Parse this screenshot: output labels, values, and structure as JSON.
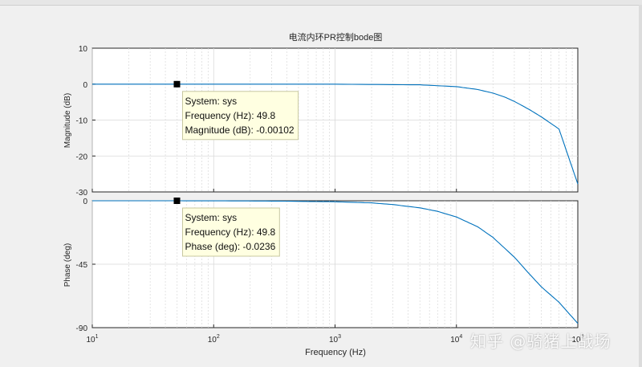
{
  "colors": {
    "background": "#f0f0f0",
    "axes_face": "#ffffff",
    "grid": "#d9d9d9",
    "curve": "#0072bd",
    "datatip_bg": "#ffffe1",
    "datatip_border": "#c8c8a0",
    "marker": "#000000"
  },
  "watermark": "知乎 @骑猪上战场",
  "chart_data": {
    "type": "line",
    "title": "电流内环PR控制bode图",
    "xlabel": "Frequency  (Hz)",
    "xscale": "log",
    "xlim": [
      10,
      100000
    ],
    "x_tick_labels": [
      "10^1",
      "10^2",
      "10^3",
      "10^4",
      "10^5"
    ],
    "x_tick_base": "10",
    "x_tick_exponents": [
      "1",
      "2",
      "3",
      "4",
      "5"
    ],
    "grid": true,
    "subplots": [
      {
        "name": "magnitude",
        "ylabel": "Magnitude (dB)",
        "ylim": [
          -30,
          10
        ],
        "y_ticks": [
          10,
          0,
          -10,
          -20,
          -30
        ],
        "series": [
          {
            "x": [
              10,
              49.8,
              100,
              1000,
              5000,
              10000,
              15000,
              20000,
              25000,
              30000,
              40000,
              50000,
              70000,
              100000
            ],
            "y": [
              0,
              -0.00102,
              -0.004,
              -0.02,
              -0.2,
              -0.7,
              -1.5,
              -2.5,
              -3.6,
              -4.8,
              -7.1,
              -9.1,
              -12.5,
              -27.8
            ]
          }
        ],
        "datatip": {
          "lines": [
            "System: sys",
            "Frequency (Hz): 49.8",
            "Magnitude (dB): -0.00102"
          ],
          "x": 49.8,
          "y": -0.00102
        }
      },
      {
        "name": "phase",
        "ylabel": "Phase (deg)",
        "ylim": [
          -90,
          0
        ],
        "y_ticks": [
          0,
          -45,
          -90
        ],
        "series": [
          {
            "x": [
              10,
              49.8,
              100,
              300,
              1000,
              2000,
              3000,
              5000,
              7000,
              10000,
              15000,
              20000,
              30000,
              40000,
              50000,
              70000,
              100000
            ],
            "y": [
              0,
              -0.0236,
              -0.05,
              -0.2,
              -0.7,
              -1.5,
              -2.7,
              -5.0,
              -7.5,
              -11.5,
              -18.5,
              -26,
              -40,
              -52,
              -61,
              -72,
              -87
            ]
          }
        ],
        "datatip": {
          "lines": [
            "System: sys",
            "Frequency (Hz): 49.8",
            "Phase (deg): -0.0236"
          ],
          "x": 49.8,
          "y": -0.0236
        }
      }
    ]
  }
}
